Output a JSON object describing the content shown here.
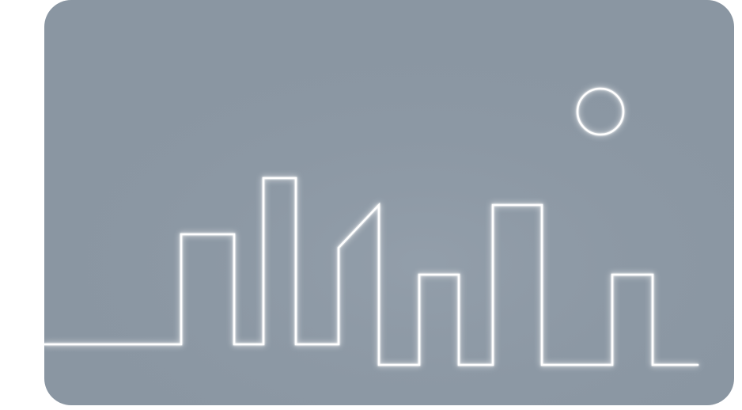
{
  "colors": {
    "page_background": "#ffffff",
    "card_background": "#8a96a2",
    "card_background_light": "#98a4b0",
    "line_color": "#ffffff",
    "glow_color": "#eef3f7"
  },
  "illustration": {
    "subject": "city-skyline-with-moon",
    "style": "neon-line",
    "elements": [
      "skyline",
      "moon"
    ]
  }
}
